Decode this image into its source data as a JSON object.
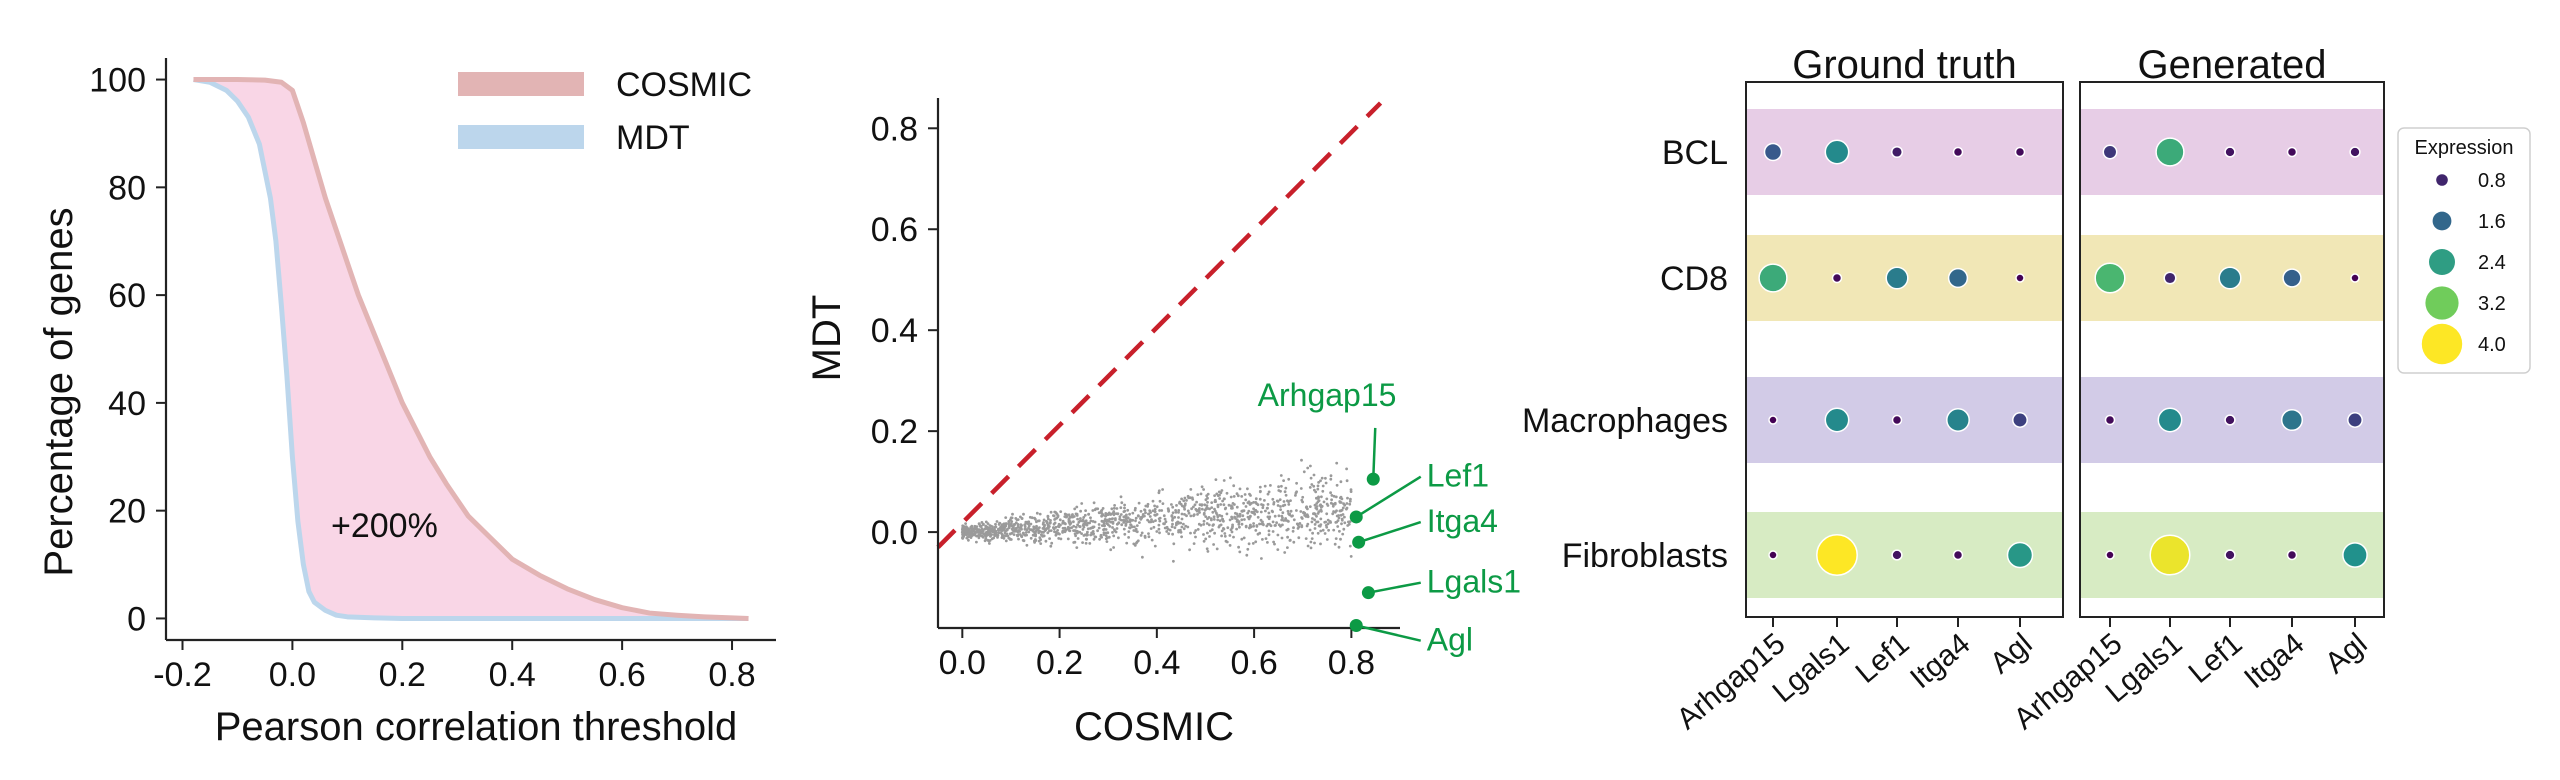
{
  "colors": {
    "cosmic": "#e2b4b4",
    "cosmic_fill": "#f9d6e6",
    "mdt": "#bcd6ec",
    "diag": "#c8202b",
    "gene": "#0c9a45",
    "scatter": "#9a9a9a",
    "row_bcl": "#e7cde6",
    "row_cd8": "#f1e7b6",
    "row_mac": "#d2cbe7",
    "row_fib": "#d7ebc3"
  },
  "chart_data": [
    {
      "type": "area",
      "xlabel": "Pearson correlation threshold",
      "ylabel": "Percentage of genes",
      "xlim": [
        -0.23,
        0.88
      ],
      "ylim": [
        -4,
        104
      ],
      "xticks": [
        "-0.2",
        "0.0",
        "0.2",
        "0.4",
        "0.6",
        "0.8"
      ],
      "xtick_values": [
        -0.2,
        0.0,
        0.2,
        0.4,
        0.6,
        0.8
      ],
      "yticks": [
        "0",
        "20",
        "40",
        "60",
        "80",
        "100"
      ],
      "ytick_values": [
        0,
        20,
        40,
        60,
        80,
        100
      ],
      "annotation": "+200%",
      "legend": [
        "COSMIC",
        "MDT"
      ],
      "series": [
        {
          "name": "COSMIC",
          "x": [
            -0.18,
            -0.1,
            -0.05,
            -0.02,
            0.0,
            0.02,
            0.04,
            0.06,
            0.08,
            0.1,
            0.12,
            0.14,
            0.16,
            0.18,
            0.2,
            0.22,
            0.25,
            0.28,
            0.32,
            0.36,
            0.4,
            0.45,
            0.5,
            0.55,
            0.6,
            0.65,
            0.7,
            0.75,
            0.8,
            0.83
          ],
          "values": [
            100,
            100,
            99.9,
            99.5,
            98,
            92,
            85,
            78,
            72,
            66,
            60,
            55,
            50,
            45,
            40,
            36,
            30,
            25,
            19,
            15,
            11,
            8,
            5.5,
            3.5,
            2,
            1,
            0.6,
            0.3,
            0.1,
            0
          ]
        },
        {
          "name": "MDT",
          "x": [
            -0.18,
            -0.15,
            -0.12,
            -0.1,
            -0.08,
            -0.06,
            -0.04,
            -0.03,
            -0.02,
            -0.01,
            0.0,
            0.01,
            0.02,
            0.03,
            0.04,
            0.06,
            0.08,
            0.1,
            0.15,
            0.2,
            0.3,
            0.5,
            0.83
          ],
          "values": [
            100,
            99.5,
            98,
            96,
            93,
            88,
            78,
            70,
            58,
            45,
            30,
            18,
            10,
            5,
            3,
            1.5,
            0.6,
            0.3,
            0.1,
            0,
            0,
            0,
            0
          ]
        }
      ]
    },
    {
      "type": "scatter",
      "xlabel": "COSMIC",
      "ylabel": "MDT",
      "xlim": [
        -0.05,
        0.9
      ],
      "ylim": [
        -0.19,
        0.86
      ],
      "xticks": [
        "0.0",
        "0.2",
        "0.4",
        "0.6",
        "0.8"
      ],
      "xtick_values": [
        0.0,
        0.2,
        0.4,
        0.6,
        0.8
      ],
      "yticks": [
        "0.0",
        "0.2",
        "0.4",
        "0.6",
        "0.8"
      ],
      "ytick_values": [
        0.0,
        0.2,
        0.4,
        0.6,
        0.8
      ],
      "diagonal": {
        "x": [
          -0.05,
          0.86
        ],
        "y": [
          -0.03,
          0.85
        ]
      },
      "highlighted": [
        {
          "gene": "Arhgap15",
          "x": 0.845,
          "y": 0.105,
          "label_x": 0.75,
          "label_y": 0.25
        },
        {
          "gene": "Lef1",
          "x": 0.81,
          "y": 0.03,
          "label_x": 0.955,
          "label_y": 0.09
        },
        {
          "gene": "Itga4",
          "x": 0.815,
          "y": -0.02,
          "label_x": 0.955,
          "label_y": 0.0
        },
        {
          "gene": "Lgals1",
          "x": 0.835,
          "y": -0.12,
          "label_x": 0.955,
          "label_y": -0.12
        },
        {
          "gene": "Agl",
          "x": 0.81,
          "y": -0.185,
          "label_x": 0.955,
          "label_y": -0.235
        }
      ]
    },
    {
      "type": "heatmap",
      "panels": [
        "Ground truth",
        "Generated"
      ],
      "rows": [
        "BCL",
        "CD8",
        "Macrophages",
        "Fibroblasts"
      ],
      "columns": [
        "Arhgap15",
        "Lgals1",
        "Lef1",
        "Itga4",
        "Agl"
      ],
      "legend_title": "Expression",
      "legend_values": [
        0.8,
        1.6,
        2.4,
        3.2,
        4.0
      ],
      "legend_labels": [
        "0.8",
        "1.6",
        "2.4",
        "3.2",
        "4.0"
      ],
      "values": [
        [
          [
            1.4,
            2.1,
            0.7,
            0.5,
            0.5
          ],
          [
            2.6,
            0.5,
            1.9,
            1.6,
            0.4
          ],
          [
            0.4,
            2.1,
            0.5,
            2.0,
            1.1
          ],
          [
            0.4,
            4.0,
            0.6,
            0.5,
            2.3
          ]
        ],
        [
          [
            1.0,
            2.6,
            0.6,
            0.5,
            0.6
          ],
          [
            2.8,
            0.8,
            1.9,
            1.5,
            0.4
          ],
          [
            0.5,
            2.1,
            0.6,
            1.8,
            1.1
          ],
          [
            0.4,
            3.9,
            0.6,
            0.5,
            2.2
          ]
        ]
      ]
    }
  ]
}
